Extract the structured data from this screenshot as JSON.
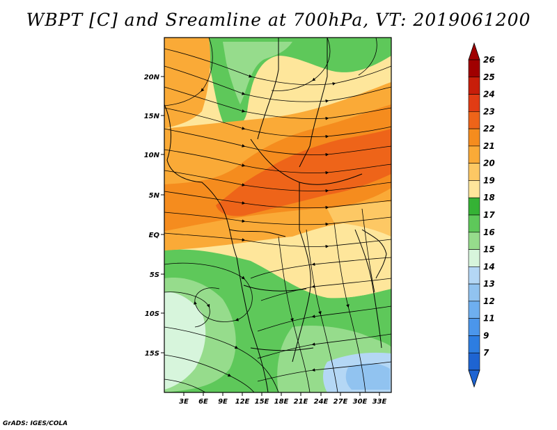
{
  "title": "WBPT [C] and Sreamline at 700hPa, VT: 2019061200",
  "credit": "GrADS: IGES/COLA",
  "lat_labels": [
    "20N",
    "15N",
    "10N",
    "5N",
    "EQ",
    "5S",
    "10S",
    "15S"
  ],
  "lon_labels": [
    "3E",
    "6E",
    "9E",
    "12E",
    "15E",
    "18E",
    "21E",
    "24E",
    "27E",
    "30E",
    "33E"
  ],
  "colorbar": [
    {
      "label": "26",
      "color": "#a00000"
    },
    {
      "label": "25",
      "color": "#c81e0a"
    },
    {
      "label": "24",
      "color": "#e13c14"
    },
    {
      "label": "23",
      "color": "#ee6419"
    },
    {
      "label": "22",
      "color": "#f58c1e"
    },
    {
      "label": "21",
      "color": "#faaa37"
    },
    {
      "label": "20",
      "color": "#fdc864"
    },
    {
      "label": "19",
      "color": "#fee69b"
    },
    {
      "label": "18",
      "color": "#35b235"
    },
    {
      "label": "17",
      "color": "#5ec85a"
    },
    {
      "label": "16",
      "color": "#96dc8c"
    },
    {
      "label": "15",
      "color": "#d7f5dc"
    },
    {
      "label": "14",
      "color": "#b4d7f5"
    },
    {
      "label": "13",
      "color": "#91c3f0"
    },
    {
      "label": "12",
      "color": "#6eaff0"
    },
    {
      "label": "11",
      "color": "#4b96eb"
    },
    {
      "label": "9",
      "color": "#2d7de1"
    },
    {
      "label": "7",
      "color": "#1e64d2"
    }
  ]
}
